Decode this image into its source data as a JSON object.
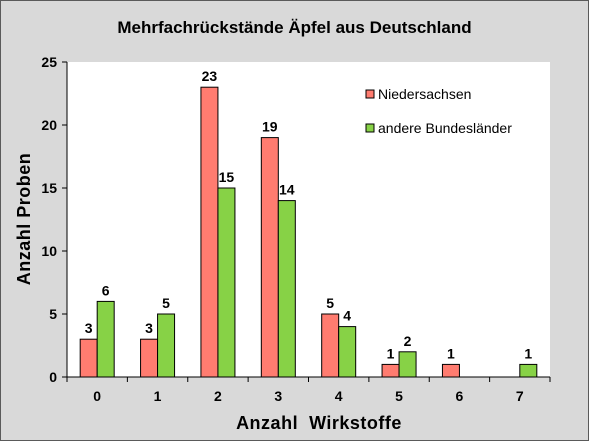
{
  "chart_data": {
    "type": "bar",
    "title": "Mehrfachrückstände Äpfel aus Deutschland",
    "xlabel": "Anzahl  Wirkstoffe",
    "ylabel": "Anzahl  Proben",
    "categories": [
      "0",
      "1",
      "2",
      "3",
      "4",
      "5",
      "6",
      "7"
    ],
    "ylim": [
      0,
      25
    ],
    "yticks": [
      0,
      5,
      10,
      15,
      20,
      25
    ],
    "grid": false,
    "legend_position": "top-right",
    "series": [
      {
        "name": "Niedersachsen",
        "color": "#ff7c70",
        "values": [
          3,
          3,
          23,
          19,
          5,
          1,
          1,
          0
        ]
      },
      {
        "name": "andere Bundesländer",
        "color": "#87d246",
        "values": [
          6,
          5,
          15,
          14,
          4,
          2,
          0,
          1
        ]
      }
    ]
  }
}
